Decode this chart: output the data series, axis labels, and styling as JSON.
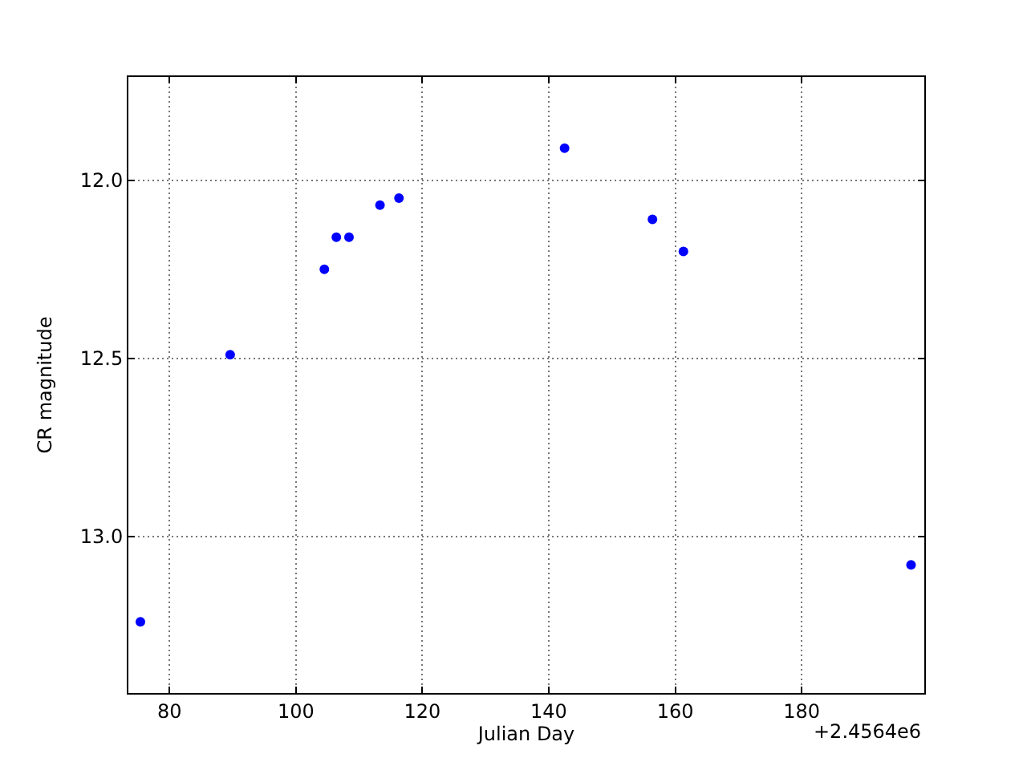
{
  "chart_data": {
    "type": "scatter",
    "xlabel": "Julian Day",
    "ylabel": "CR magnitude",
    "annotations": [
      "+2.4564e6"
    ],
    "x": [
      75.4,
      89.6,
      104.5,
      106.4,
      108.4,
      113.3,
      116.3,
      142.5,
      156.4,
      161.3,
      197.3
    ],
    "values": [
      13.24,
      12.49,
      12.25,
      12.16,
      12.16,
      12.07,
      12.05,
      11.91,
      12.11,
      12.2,
      13.08
    ],
    "color": "#0000ff",
    "marker": "circle",
    "grid": true,
    "xlim": [
      73.5,
      199.4
    ],
    "xticks": [
      80,
      100,
      120,
      140,
      160,
      180
    ],
    "ylim": [
      13.44,
      11.71
    ],
    "yticks": [
      {
        "value": 12,
        "label": "12.0"
      },
      {
        "value": 12.5,
        "label": "12.5"
      },
      {
        "value": 13,
        "label": "13.0"
      }
    ]
  }
}
